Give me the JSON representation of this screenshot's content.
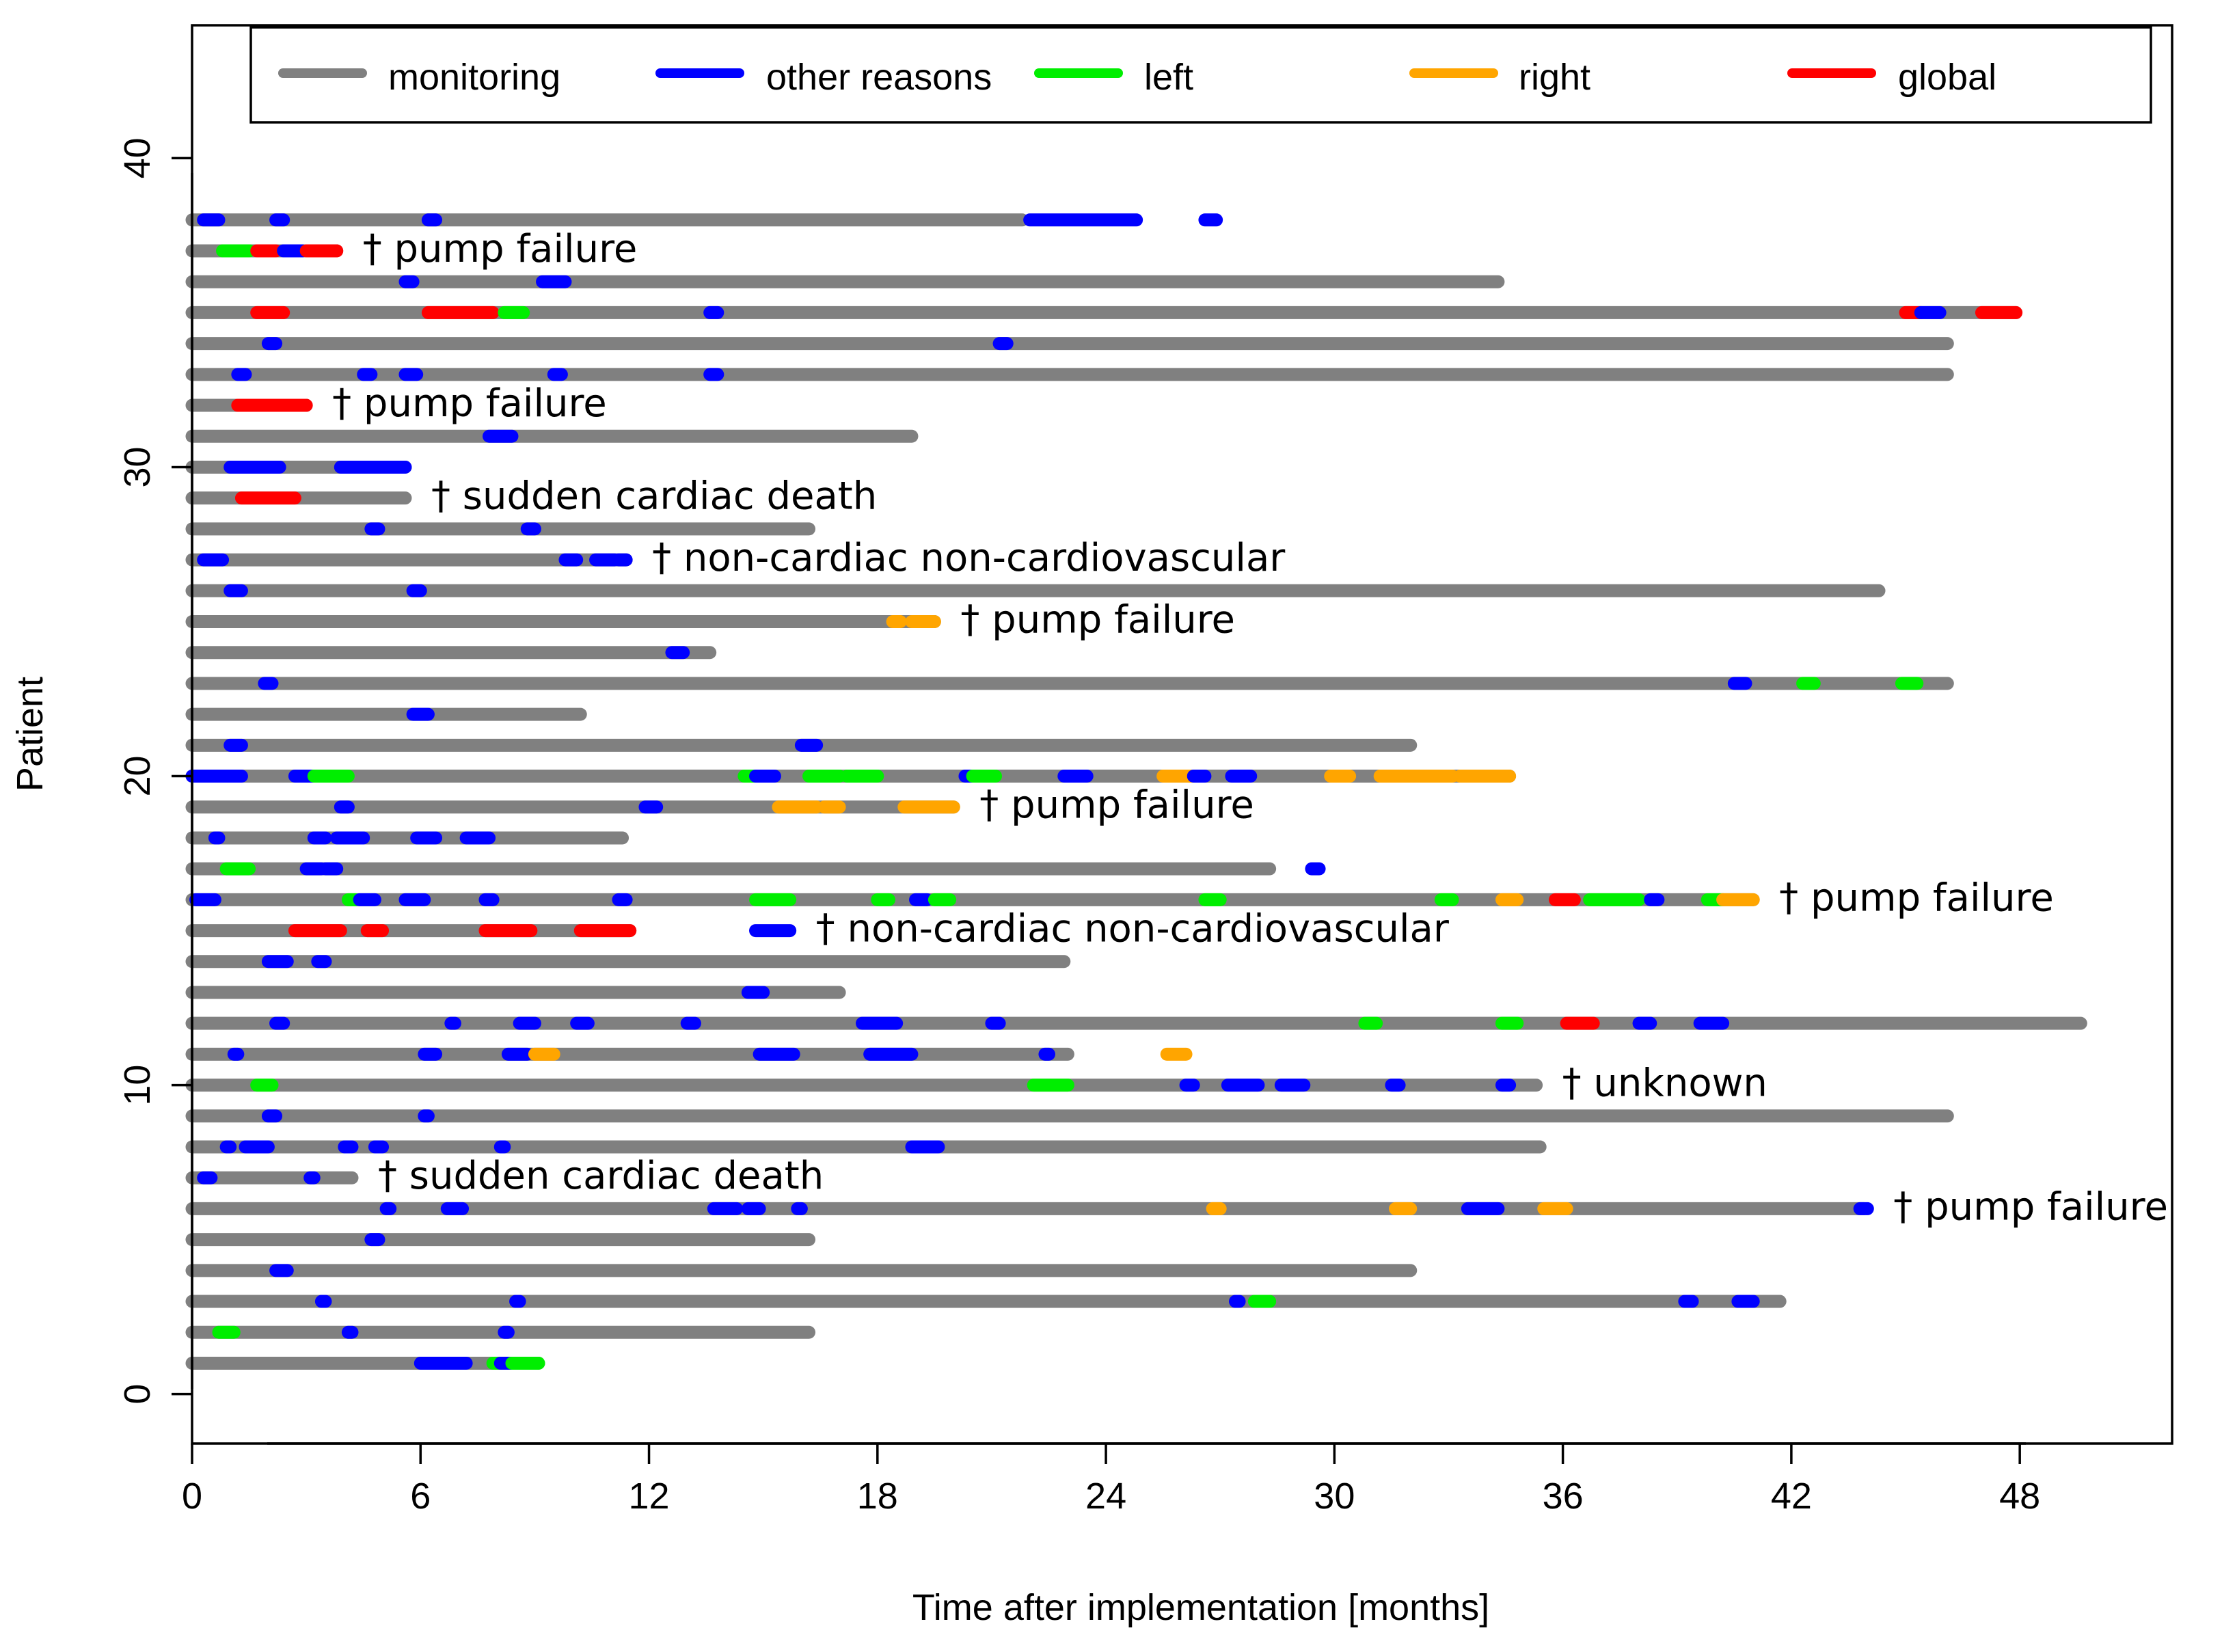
{
  "chart_data": {
    "type": "swimmer",
    "title": "",
    "xlabel": "Time after implementation [months]",
    "ylabel": "Patient",
    "xlim": [
      0,
      52
    ],
    "ylim": [
      -1.6,
      44.3
    ],
    "xticks": [
      0,
      6,
      12,
      18,
      24,
      30,
      36,
      42,
      48
    ],
    "yticks": [
      0,
      10,
      20,
      30,
      40
    ],
    "legend": {
      "position": "top",
      "entries": [
        {
          "key": "monitoring",
          "label": "monitoring"
        },
        {
          "key": "other",
          "label": "other reasons"
        },
        {
          "key": "left",
          "label": "left"
        },
        {
          "key": "right",
          "label": "right"
        },
        {
          "key": "global",
          "label": "global"
        }
      ]
    },
    "colors": {
      "monitoring": "#808080",
      "other": "#0000ff",
      "left": "#00ee00",
      "right": "#ffa500",
      "global": "#ff0000"
    },
    "dagger": "†",
    "patients": [
      {
        "id": 1,
        "end": 9.1,
        "events": [
          [
            "other",
            6.0,
            7.2
          ],
          [
            "left",
            7.9,
            8.1
          ],
          [
            "other",
            8.1,
            8.4
          ],
          [
            "left",
            8.4,
            9.1
          ]
        ]
      },
      {
        "id": 2,
        "end": 16.2,
        "events": [
          [
            "left",
            0.7,
            1.1
          ],
          [
            "other",
            4.1,
            4.2
          ],
          [
            "other",
            8.2,
            8.3
          ]
        ]
      },
      {
        "id": 3,
        "end": 41.7,
        "events": [
          [
            "other",
            3.4,
            3.5
          ],
          [
            "other",
            8.5,
            8.6
          ],
          [
            "other",
            27.4,
            27.5
          ],
          [
            "left",
            27.9,
            28.3
          ],
          [
            "other",
            39.2,
            39.4
          ],
          [
            "other",
            40.6,
            41.0
          ]
        ]
      },
      {
        "id": 4,
        "end": 32.0,
        "events": [
          [
            "other",
            2.2,
            2.5
          ]
        ]
      },
      {
        "id": 5,
        "end": 16.2,
        "events": [
          [
            "other",
            4.7,
            4.9
          ]
        ]
      },
      {
        "id": 6,
        "end": 43.9,
        "events": [
          [
            "other",
            5.1,
            5.2
          ],
          [
            "other",
            6.7,
            7.1
          ],
          [
            "other",
            13.7,
            14.3
          ],
          [
            "other",
            14.6,
            14.9
          ],
          [
            "other",
            15.9,
            16.0
          ],
          [
            "right",
            26.8,
            27.0
          ],
          [
            "right",
            31.6,
            32.0
          ],
          [
            "other",
            33.5,
            34.3
          ],
          [
            "right",
            35.5,
            36.1
          ],
          [
            "other",
            43.8,
            44.0
          ]
        ],
        "death": "pump failure"
      },
      {
        "id": 7,
        "end": 4.2,
        "events": [
          [
            "other",
            0.3,
            0.5
          ],
          [
            "other",
            3.1,
            3.2
          ]
        ],
        "death": "sudden cardiac death"
      },
      {
        "id": 8,
        "end": 35.4,
        "events": [
          [
            "other",
            0.9,
            1.0
          ],
          [
            "other",
            1.4,
            2.0
          ],
          [
            "other",
            4.0,
            4.2
          ],
          [
            "other",
            4.8,
            5.0
          ],
          [
            "other",
            8.1,
            8.2
          ],
          [
            "other",
            18.9,
            19.6
          ]
        ]
      },
      {
        "id": 9,
        "end": 46.1,
        "events": [
          [
            "other",
            2.0,
            2.2
          ],
          [
            "other",
            6.1,
            6.2
          ]
        ]
      },
      {
        "id": 10,
        "end": 35.3,
        "events": [
          [
            "left",
            1.7,
            2.1
          ],
          [
            "left",
            22.1,
            23.0
          ],
          [
            "other",
            26.1,
            26.3
          ],
          [
            "other",
            27.2,
            28.0
          ],
          [
            "other",
            28.6,
            29.2
          ],
          [
            "other",
            31.5,
            31.7
          ],
          [
            "other",
            34.4,
            34.6
          ]
        ],
        "death": "unknown"
      },
      {
        "id": 11,
        "end": 23.0,
        "events": [
          [
            "other",
            1.1,
            1.2
          ],
          [
            "other",
            6.1,
            6.4
          ],
          [
            "other",
            8.3,
            8.8
          ],
          [
            "right",
            9.0,
            9.5
          ],
          [
            "other",
            14.9,
            15.8
          ],
          [
            "other",
            17.8,
            18.9
          ],
          [
            "other",
            22.4,
            22.5
          ],
          [
            "right",
            25.6,
            26.1
          ]
        ]
      },
      {
        "id": 12,
        "end": 49.6,
        "events": [
          [
            "other",
            2.2,
            2.4
          ],
          [
            "other",
            6.8,
            6.9
          ],
          [
            "other",
            8.6,
            9.0
          ],
          [
            "other",
            10.1,
            10.4
          ],
          [
            "other",
            13.0,
            13.2
          ],
          [
            "other",
            17.6,
            18.5
          ],
          [
            "other",
            21.0,
            21.2
          ],
          [
            "left",
            30.8,
            31.1
          ],
          [
            "left",
            34.4,
            34.8
          ],
          [
            "global",
            36.1,
            36.8
          ],
          [
            "other",
            38.0,
            38.3
          ],
          [
            "other",
            39.6,
            40.2
          ]
        ]
      },
      {
        "id": 13,
        "end": 17.0,
        "events": [
          [
            "other",
            14.6,
            15.0
          ]
        ]
      },
      {
        "id": 14,
        "end": 22.9,
        "events": [
          [
            "other",
            2.0,
            2.5
          ],
          [
            "other",
            3.3,
            3.5
          ]
        ]
      },
      {
        "id": 15,
        "end": 11.5,
        "events": [
          [
            "global",
            2.7,
            3.9
          ],
          [
            "global",
            4.6,
            5.0
          ],
          [
            "global",
            7.7,
            8.9
          ],
          [
            "global",
            10.2,
            11.5
          ],
          [
            "other",
            14.8,
            15.7
          ]
        ],
        "death": "non-cardiac non-cardiovascular"
      },
      {
        "id": 16,
        "end": 41.0,
        "events": [
          [
            "other",
            0.1,
            0.6
          ],
          [
            "left",
            4.1,
            4.3
          ],
          [
            "other",
            4.4,
            4.8
          ],
          [
            "other",
            5.6,
            6.1
          ],
          [
            "other",
            7.7,
            7.9
          ],
          [
            "other",
            11.2,
            11.4
          ],
          [
            "left",
            14.8,
            15.7
          ],
          [
            "left",
            18.0,
            18.3
          ],
          [
            "other",
            19.0,
            19.3
          ],
          [
            "left",
            19.5,
            19.9
          ],
          [
            "left",
            26.6,
            27.0
          ],
          [
            "left",
            32.8,
            33.1
          ],
          [
            "right",
            34.4,
            34.8
          ],
          [
            "global",
            35.8,
            36.3
          ],
          [
            "left",
            36.7,
            38.0
          ],
          [
            "other",
            38.3,
            38.5
          ],
          [
            "left",
            39.8,
            40.2
          ],
          [
            "right",
            40.2,
            41.0
          ]
        ],
        "death": "pump failure"
      },
      {
        "id": 17,
        "end": 28.3,
        "events": [
          [
            "left",
            0.9,
            1.5
          ],
          [
            "other",
            3.0,
            3.4
          ],
          [
            "other",
            3.5,
            3.8
          ],
          [
            "other",
            29.4,
            29.6
          ]
        ]
      },
      {
        "id": 18,
        "end": 11.3,
        "events": [
          [
            "other",
            0.6,
            0.7
          ],
          [
            "other",
            3.2,
            3.5
          ],
          [
            "other",
            3.8,
            4.5
          ],
          [
            "other",
            5.9,
            6.4
          ],
          [
            "other",
            7.2,
            7.8
          ]
        ]
      },
      {
        "id": 19,
        "end": 20.0,
        "events": [
          [
            "other",
            3.9,
            4.1
          ],
          [
            "other",
            11.9,
            12.2
          ],
          [
            "right",
            15.4,
            16.4
          ],
          [
            "right",
            16.6,
            17.0
          ],
          [
            "right",
            18.7,
            20.0
          ]
        ],
        "death": "pump failure"
      },
      {
        "id": 20,
        "end": 34.6,
        "events": [
          [
            "other",
            0.0,
            1.3
          ],
          [
            "other",
            2.7,
            3.2
          ],
          [
            "left",
            3.2,
            4.1
          ],
          [
            "left",
            14.5,
            14.8
          ],
          [
            "other",
            14.8,
            15.3
          ],
          [
            "left",
            16.2,
            17.0
          ],
          [
            "left",
            17.2,
            18.0
          ],
          [
            "other",
            20.3,
            20.5
          ],
          [
            "left",
            20.5,
            21.1
          ],
          [
            "other",
            22.9,
            23.5
          ],
          [
            "right",
            25.5,
            26.3
          ],
          [
            "other",
            26.3,
            26.6
          ],
          [
            "other",
            27.3,
            27.8
          ],
          [
            "right",
            29.9,
            30.4
          ],
          [
            "right",
            31.2,
            33.1
          ],
          [
            "right",
            33.3,
            34.6
          ]
        ]
      },
      {
        "id": 21,
        "end": 32.0,
        "events": [
          [
            "other",
            1.0,
            1.3
          ],
          [
            "other",
            16.0,
            16.4
          ]
        ]
      },
      {
        "id": 22,
        "end": 10.2,
        "events": [
          [
            "other",
            5.8,
            6.2
          ]
        ]
      },
      {
        "id": 23,
        "end": 46.1,
        "events": [
          [
            "other",
            1.9,
            2.1
          ],
          [
            "other",
            40.5,
            40.8
          ],
          [
            "left",
            42.3,
            42.6
          ],
          [
            "left",
            44.9,
            45.3
          ]
        ]
      },
      {
        "id": 24,
        "end": 13.6,
        "events": [
          [
            "other",
            12.6,
            12.9
          ]
        ]
      },
      {
        "id": 25,
        "end": 19.5,
        "events": [
          [
            "right",
            18.4,
            18.6
          ],
          [
            "right",
            18.9,
            19.5
          ]
        ],
        "death": "pump failure"
      },
      {
        "id": 26,
        "end": 44.3,
        "events": [
          [
            "other",
            1.0,
            1.3
          ],
          [
            "other",
            5.8,
            6.0
          ]
        ]
      },
      {
        "id": 27,
        "end": 11.4,
        "events": [
          [
            "other",
            0.3,
            0.8
          ],
          [
            "other",
            9.8,
            10.1
          ],
          [
            "other",
            10.6,
            11.1
          ],
          [
            "other",
            11.2,
            11.4
          ]
        ],
        "death": "non-cardiac non-cardiovascular"
      },
      {
        "id": 28,
        "end": 16.2,
        "events": [
          [
            "other",
            4.7,
            4.9
          ],
          [
            "other",
            8.8,
            9.0
          ]
        ]
      },
      {
        "id": 29,
        "end": 5.6,
        "events": [
          [
            "global",
            1.3,
            2.7
          ]
        ],
        "death": "sudden cardiac death"
      },
      {
        "id": 30,
        "end": 5.6,
        "events": [
          [
            "other",
            1.0,
            2.3
          ],
          [
            "other",
            3.9,
            5.6
          ]
        ]
      },
      {
        "id": 31,
        "end": 18.9,
        "events": [
          [
            "other",
            7.8,
            8.4
          ]
        ]
      },
      {
        "id": 32,
        "end": 3.0,
        "events": [
          [
            "global",
            1.2,
            3.0
          ]
        ],
        "death": "pump failure"
      },
      {
        "id": 33,
        "end": 46.1,
        "events": [
          [
            "other",
            1.2,
            1.4
          ],
          [
            "other",
            4.5,
            4.7
          ],
          [
            "other",
            5.6,
            5.9
          ],
          [
            "other",
            9.5,
            9.7
          ],
          [
            "other",
            13.6,
            13.8
          ]
        ]
      },
      {
        "id": 34,
        "end": 46.1,
        "events": [
          [
            "other",
            2.0,
            2.2
          ],
          [
            "other",
            21.2,
            21.4
          ]
        ]
      },
      {
        "id": 35,
        "end": 47.9,
        "events": [
          [
            "global",
            1.7,
            2.4
          ],
          [
            "global",
            6.2,
            7.9
          ],
          [
            "left",
            8.2,
            8.7
          ],
          [
            "other",
            13.6,
            13.8
          ],
          [
            "global",
            45.0,
            45.4
          ],
          [
            "other",
            45.4,
            45.9
          ],
          [
            "global",
            47.0,
            47.9
          ]
        ]
      },
      {
        "id": 36,
        "end": 34.3,
        "events": [
          [
            "other",
            5.6,
            5.8
          ],
          [
            "other",
            9.2,
            9.8
          ]
        ]
      },
      {
        "id": 37,
        "end": 3.8,
        "events": [
          [
            "left",
            0.8,
            1.5
          ],
          [
            "global",
            1.7,
            2.2
          ],
          [
            "other",
            2.4,
            2.9
          ],
          [
            "global",
            3.0,
            3.8
          ]
        ],
        "death": "pump failure"
      },
      {
        "id": 38,
        "end": 21.8,
        "events": [
          [
            "other",
            0.3,
            0.7
          ],
          [
            "other",
            2.2,
            2.4
          ],
          [
            "other",
            6.2,
            6.4
          ],
          [
            "other",
            22.0,
            24.8
          ],
          [
            "other",
            26.6,
            26.9
          ]
        ]
      }
    ]
  }
}
